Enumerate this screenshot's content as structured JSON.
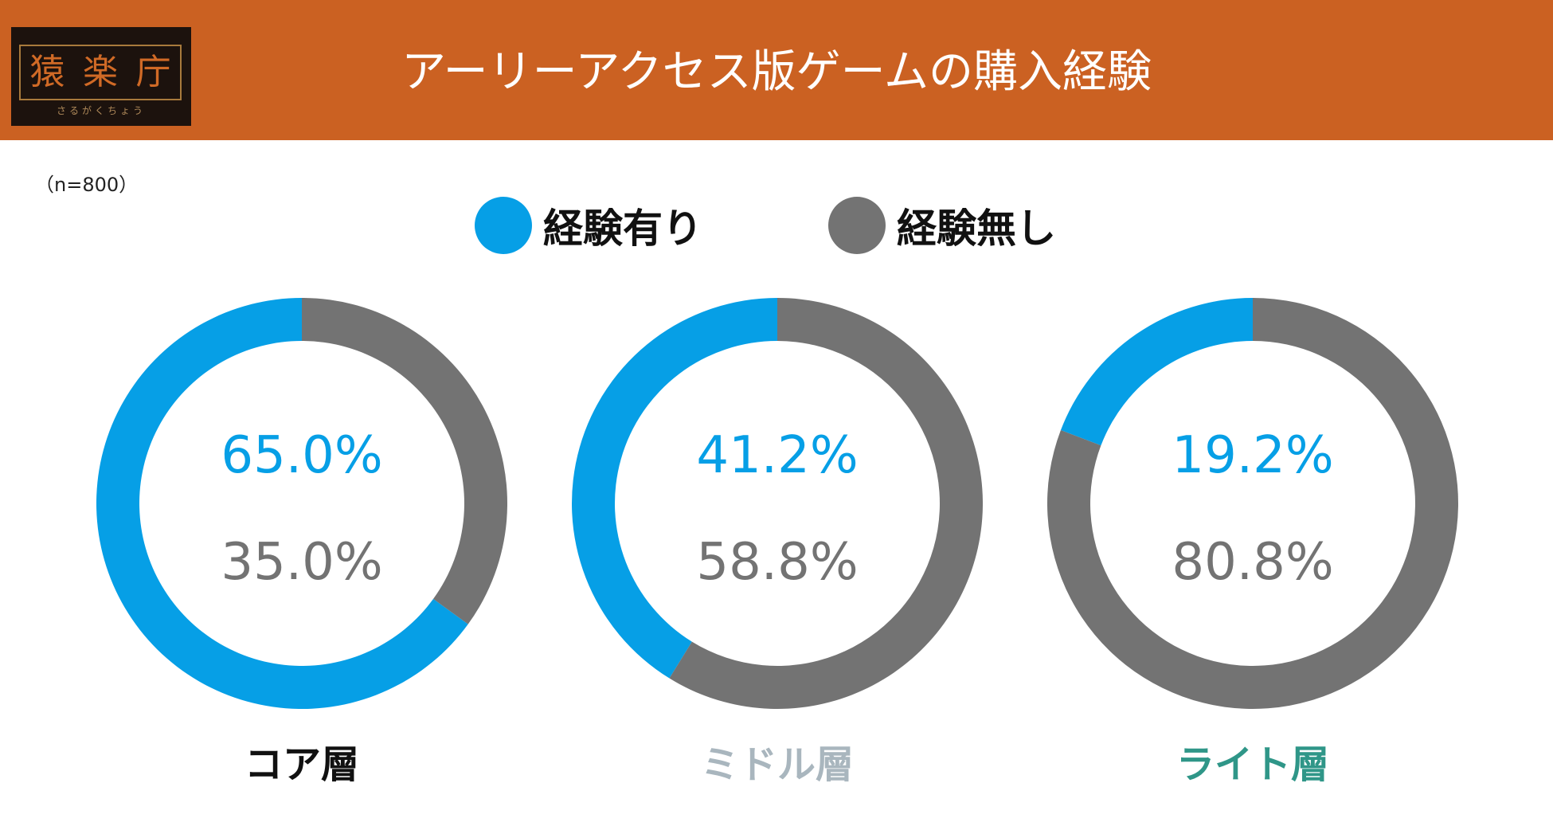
{
  "header": {
    "title": "アーリーアクセス版ゲームの購入経験",
    "logo": {
      "chars": [
        "猿",
        "楽",
        "庁"
      ],
      "subtitle": "さるがくちょう"
    }
  },
  "sample_size": "（n=800）",
  "colors": {
    "header_bg": "#cb6122",
    "experienced": "#069fe6",
    "not_experienced": "#737373"
  },
  "legend": [
    {
      "label": "経験有り",
      "color": "#069fe6"
    },
    {
      "label": "経験無し",
      "color": "#737373"
    }
  ],
  "chart_data": [
    {
      "type": "pie",
      "title": "コア層",
      "title_color": "#111111",
      "slices": [
        {
          "name": "経験有り",
          "value": 65.0,
          "label": "65.0%"
        },
        {
          "name": "経験無し",
          "value": 35.0,
          "label": "35.0%"
        }
      ]
    },
    {
      "type": "pie",
      "title": "ミドル層",
      "title_color": "#a9b6be",
      "slices": [
        {
          "name": "経験有り",
          "value": 41.2,
          "label": "41.2%"
        },
        {
          "name": "経験無し",
          "value": 58.8,
          "label": "58.8%"
        }
      ]
    },
    {
      "type": "pie",
      "title": "ライト層",
      "title_color": "#2f9688",
      "slices": [
        {
          "name": "経験有り",
          "value": 19.2,
          "label": "19.2%"
        },
        {
          "name": "経験無し",
          "value": 80.8,
          "label": "80.8%"
        }
      ]
    }
  ]
}
